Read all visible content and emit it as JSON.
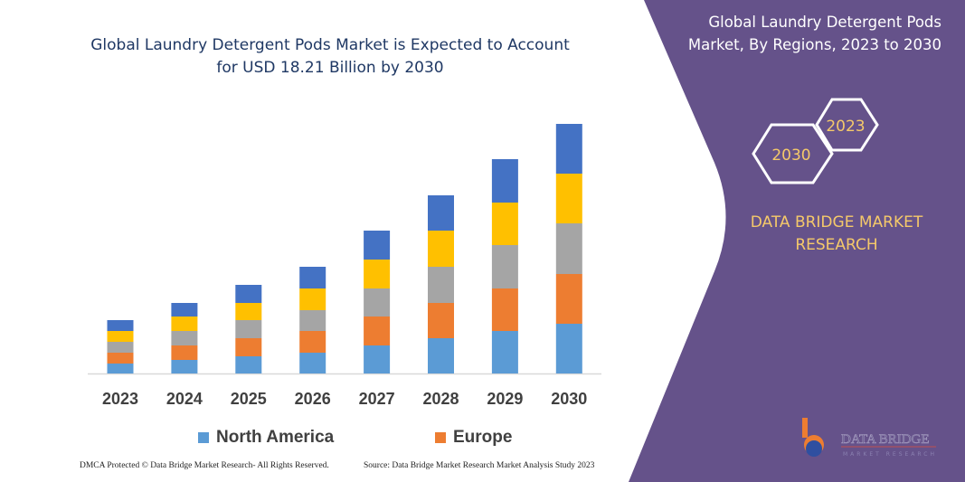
{
  "title_line1": "Global Laundry Detergent Pods Market is Expected to Account",
  "title_line2": "for USD 18.21 Billion by 2030",
  "side_title_line1": "Global Laundry Detergent Pods",
  "side_title_line2": "Market, By Regions, 2023 to 2030",
  "hex_labels": [
    "2023",
    "2030"
  ],
  "brand_line1": "DATA BRIDGE MARKET",
  "brand_line2": "RESEARCH",
  "logo_text": "DATA BRIDGE MARKET RESEARCH",
  "footer_left": "DMCA Protected © Data Bridge Market Research- All Rights Reserved.",
  "footer_right": "Source: Data Bridge Market Research  Market Analysis Study 2023",
  "colors": {
    "panel": "#65528A",
    "hex_text": "#f5c96a"
  },
  "chart_data": {
    "type": "bar",
    "stacked": true,
    "categories": [
      "2023",
      "2024",
      "2025",
      "2026",
      "2027",
      "2028",
      "2029",
      "2030"
    ],
    "series": [
      {
        "name": "North America",
        "color": "#5B9BD5",
        "values": [
          11,
          15,
          19,
          23,
          31,
          39,
          47,
          55
        ]
      },
      {
        "name": "Europe",
        "color": "#ED7D31",
        "values": [
          12,
          16,
          20,
          24,
          32,
          39,
          47,
          55
        ]
      },
      {
        "color": "#A5A5A5",
        "values": [
          12,
          16,
          20,
          23,
          31,
          40,
          48,
          56
        ]
      },
      {
        "color": "#FFC000",
        "values": [
          12,
          16,
          19,
          24,
          32,
          40,
          47,
          55
        ]
      },
      {
        "color": "#4472C4",
        "values": [
          12,
          15,
          20,
          24,
          32,
          39,
          48,
          55
        ]
      }
    ],
    "yaxis_visible": false,
    "grid": false,
    "legend": "bottom"
  }
}
